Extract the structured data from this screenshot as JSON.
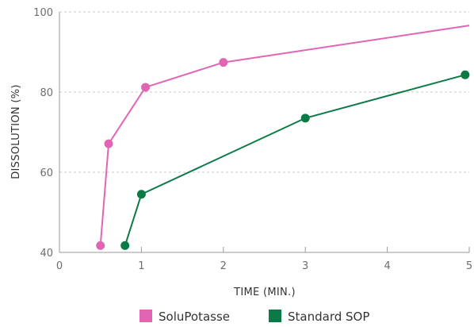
{
  "chart_data": {
    "type": "line",
    "title": "",
    "xlabel": "TIME (MIN.)",
    "ylabel": "DISSOLUTION (%)",
    "xlim": [
      0,
      5
    ],
    "ylim": [
      40,
      100
    ],
    "x_ticks": [
      "0",
      "1",
      "2",
      "3",
      "4",
      "5"
    ],
    "y_ticks": [
      "40",
      "60",
      "80",
      "100"
    ],
    "grid": "horizontal dashed",
    "legend_position": "bottom",
    "series": [
      {
        "name": "SoluPotasse",
        "color": "#e066b3",
        "points": [
          {
            "x": 0.5,
            "y": 41.7
          },
          {
            "x": 0.6,
            "y": 67.1
          },
          {
            "x": 1.05,
            "y": 81.2
          },
          {
            "x": 2.0,
            "y": 87.4
          }
        ],
        "trend_end": {
          "x": 5.0,
          "y": 96.6
        }
      },
      {
        "name": "Standard SOP",
        "color": "#0b7a47",
        "points": [
          {
            "x": 0.8,
            "y": 41.7
          },
          {
            "x": 1.0,
            "y": 54.5
          },
          {
            "x": 3.0,
            "y": 73.5
          },
          {
            "x": 4.95,
            "y": 84.3
          }
        ]
      }
    ]
  }
}
